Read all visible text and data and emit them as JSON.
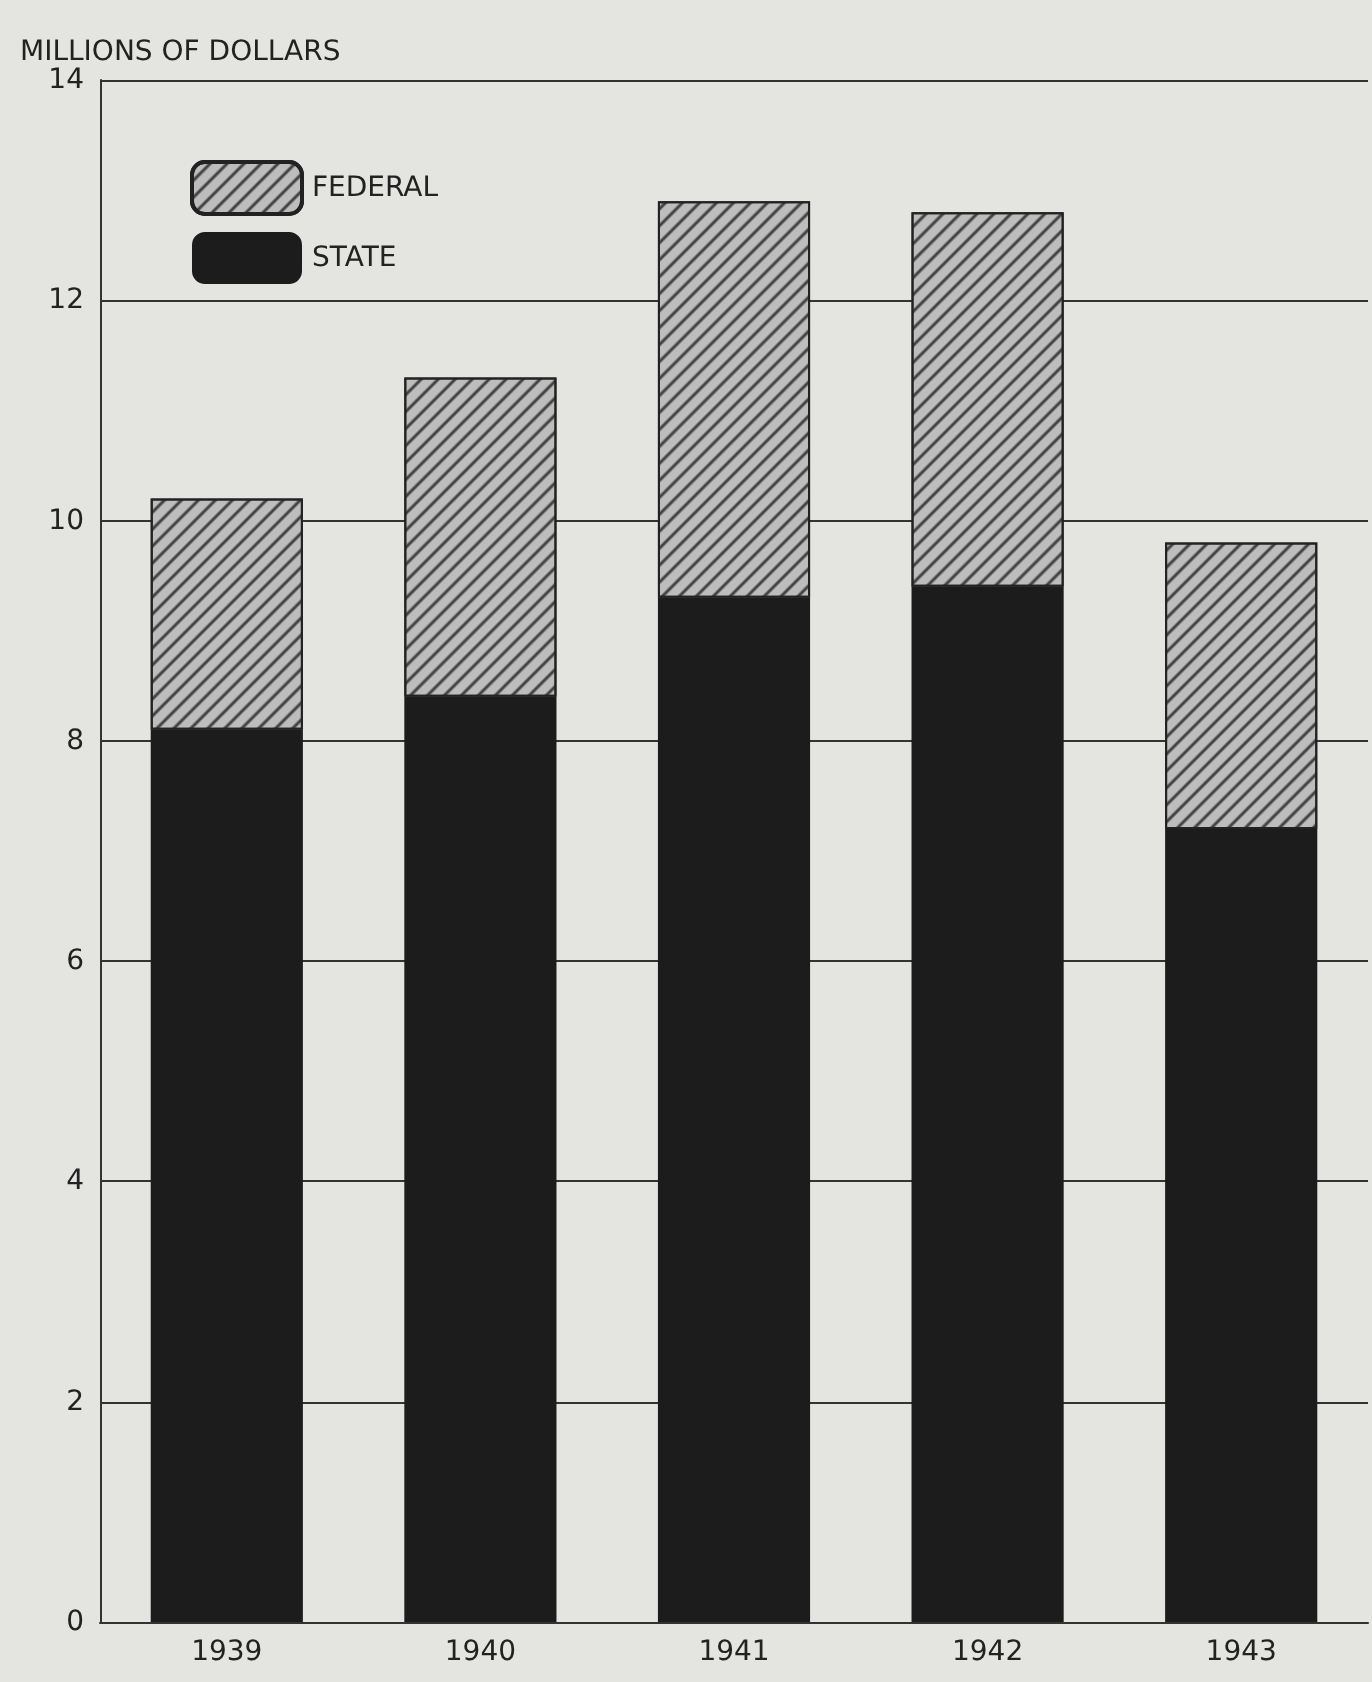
{
  "chart_data": {
    "type": "bar",
    "ylabel": "MILLIONS OF DOLLARS",
    "categories": [
      "1939",
      "1940",
      "1941",
      "1942",
      "1943"
    ],
    "stacked": true,
    "series": [
      {
        "name": "STATE",
        "color": "#1c1c1c",
        "values": [
          8.1,
          8.4,
          9.3,
          9.4,
          7.2
        ]
      },
      {
        "name": "FEDERAL",
        "color": "#bdbdbd",
        "values": [
          2.1,
          2.9,
          3.6,
          3.4,
          2.6
        ]
      }
    ],
    "ylim": [
      0,
      14
    ],
    "yticks": [
      0,
      2,
      4,
      6,
      8,
      10,
      12,
      14
    ],
    "grid": "y",
    "legend": "top left"
  }
}
